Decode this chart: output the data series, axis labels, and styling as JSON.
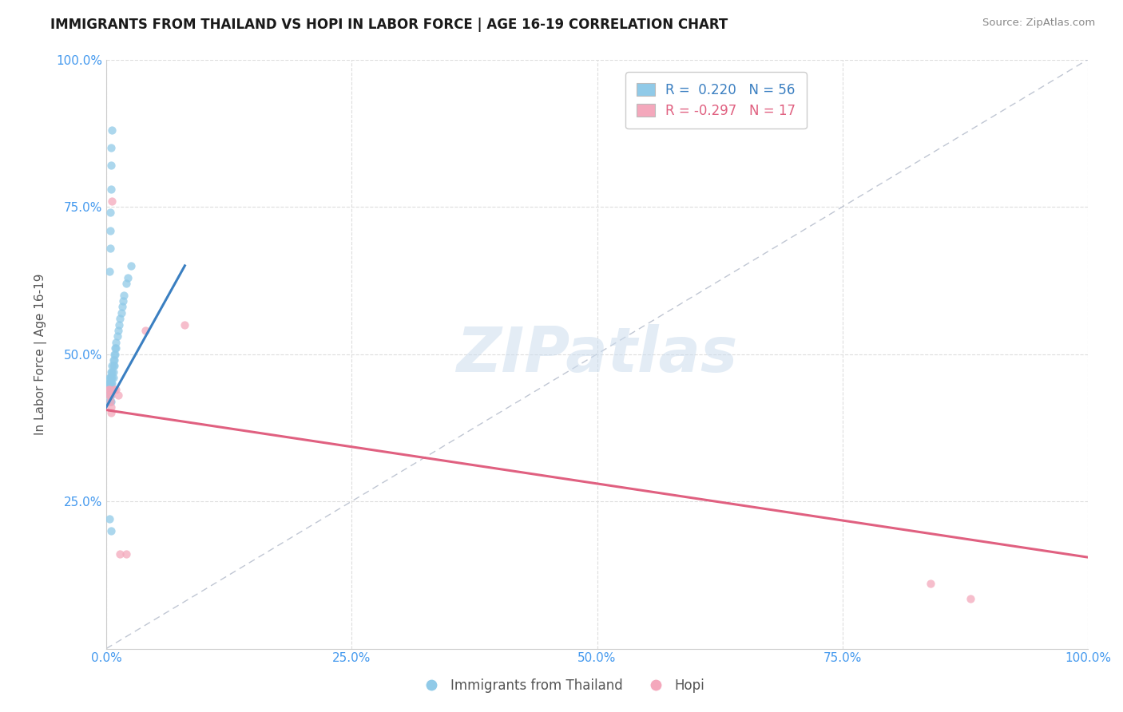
{
  "title": "IMMIGRANTS FROM THAILAND VS HOPI IN LABOR FORCE | AGE 16-19 CORRELATION CHART",
  "source": "Source: ZipAtlas.com",
  "ylabel": "In Labor Force | Age 16-19",
  "xlim": [
    0.0,
    1.0
  ],
  "ylim": [
    0.0,
    1.0
  ],
  "xticks": [
    0.0,
    0.25,
    0.5,
    0.75,
    1.0
  ],
  "xticklabels": [
    "0.0%",
    "25.0%",
    "50.0%",
    "75.0%",
    "100.0%"
  ],
  "yticks": [
    0.25,
    0.5,
    0.75,
    1.0
  ],
  "yticklabels": [
    "25.0%",
    "50.0%",
    "75.0%",
    "100.0%"
  ],
  "thailand_color": "#90CAE8",
  "hopi_color": "#F4A8BC",
  "thailand_line_color": "#3A7FC1",
  "hopi_line_color": "#E06080",
  "diagonal_color": "#B0B8C8",
  "R_thailand": 0.22,
  "N_thailand": 56,
  "R_hopi": -0.297,
  "N_hopi": 17,
  "thailand_trend_x": [
    0.0,
    0.08
  ],
  "thailand_trend_y": [
    0.41,
    0.65
  ],
  "hopi_trend_x": [
    0.0,
    1.0
  ],
  "hopi_trend_y": [
    0.405,
    0.155
  ],
  "thailand_scatter": [
    [
      0.002,
      0.44
    ],
    [
      0.002,
      0.45
    ],
    [
      0.003,
      0.44
    ],
    [
      0.003,
      0.45
    ],
    [
      0.003,
      0.46
    ],
    [
      0.003,
      0.43
    ],
    [
      0.003,
      0.42
    ],
    [
      0.004,
      0.44
    ],
    [
      0.004,
      0.46
    ],
    [
      0.004,
      0.45
    ],
    [
      0.004,
      0.44
    ],
    [
      0.004,
      0.43
    ],
    [
      0.004,
      0.42
    ],
    [
      0.005,
      0.47
    ],
    [
      0.005,
      0.46
    ],
    [
      0.005,
      0.45
    ],
    [
      0.005,
      0.44
    ],
    [
      0.005,
      0.43
    ],
    [
      0.005,
      0.42
    ],
    [
      0.006,
      0.48
    ],
    [
      0.006,
      0.47
    ],
    [
      0.006,
      0.46
    ],
    [
      0.006,
      0.45
    ],
    [
      0.006,
      0.44
    ],
    [
      0.007,
      0.49
    ],
    [
      0.007,
      0.48
    ],
    [
      0.007,
      0.47
    ],
    [
      0.007,
      0.46
    ],
    [
      0.008,
      0.5
    ],
    [
      0.008,
      0.49
    ],
    [
      0.008,
      0.48
    ],
    [
      0.009,
      0.51
    ],
    [
      0.009,
      0.5
    ],
    [
      0.01,
      0.52
    ],
    [
      0.01,
      0.51
    ],
    [
      0.011,
      0.53
    ],
    [
      0.012,
      0.54
    ],
    [
      0.013,
      0.55
    ],
    [
      0.014,
      0.56
    ],
    [
      0.015,
      0.57
    ],
    [
      0.016,
      0.58
    ],
    [
      0.017,
      0.59
    ],
    [
      0.018,
      0.6
    ],
    [
      0.02,
      0.62
    ],
    [
      0.022,
      0.63
    ],
    [
      0.025,
      0.65
    ],
    [
      0.003,
      0.64
    ],
    [
      0.004,
      0.68
    ],
    [
      0.004,
      0.71
    ],
    [
      0.004,
      0.74
    ],
    [
      0.005,
      0.78
    ],
    [
      0.005,
      0.82
    ],
    [
      0.005,
      0.85
    ],
    [
      0.006,
      0.88
    ],
    [
      0.003,
      0.22
    ],
    [
      0.005,
      0.2
    ]
  ],
  "hopi_scatter": [
    [
      0.002,
      0.44
    ],
    [
      0.003,
      0.44
    ],
    [
      0.003,
      0.43
    ],
    [
      0.004,
      0.43
    ],
    [
      0.004,
      0.42
    ],
    [
      0.005,
      0.41
    ],
    [
      0.005,
      0.4
    ],
    [
      0.006,
      0.76
    ],
    [
      0.008,
      0.44
    ],
    [
      0.01,
      0.44
    ],
    [
      0.012,
      0.43
    ],
    [
      0.014,
      0.16
    ],
    [
      0.02,
      0.16
    ],
    [
      0.04,
      0.54
    ],
    [
      0.08,
      0.55
    ],
    [
      0.84,
      0.11
    ],
    [
      0.88,
      0.085
    ]
  ]
}
